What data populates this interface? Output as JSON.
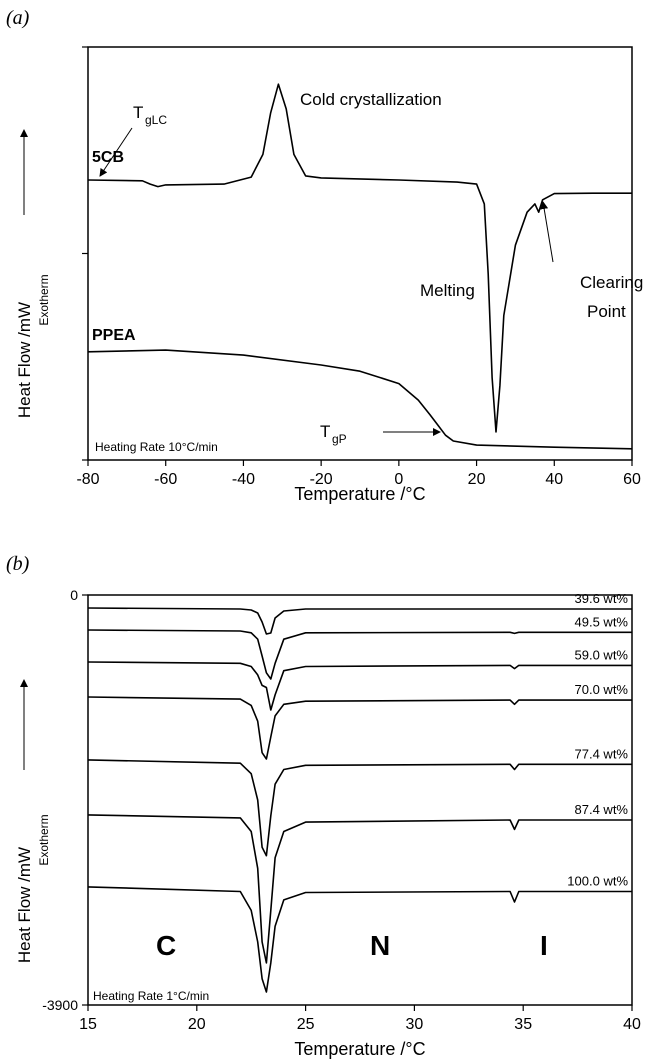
{
  "chart_data": [
    {
      "type": "line",
      "panel_label": "(a)",
      "xlabel": "Temperature /°C",
      "ylabel": "Heat Flow /mW",
      "ylabel_note": "Exotherm",
      "xlim": [
        -80,
        60
      ],
      "xticks": [
        -80,
        -60,
        -40,
        -20,
        0,
        20,
        40,
        60
      ],
      "ylim": [
        0,
        100
      ],
      "yticks": [
        0,
        50,
        100
      ],
      "ytick_labels": false,
      "series": [
        {
          "name": "5CB",
          "color": "#000000",
          "x": [
            -80,
            -66,
            -64,
            -62,
            -60,
            -45,
            -38,
            -35,
            -33,
            -31,
            -29,
            -27,
            -24,
            -20,
            0,
            15,
            20,
            22,
            23,
            24,
            25,
            26,
            27,
            30,
            33,
            35,
            36,
            37,
            40,
            50,
            60
          ],
          "values": [
            67.8,
            67.6,
            66.8,
            66.2,
            66.6,
            66.8,
            68.5,
            74,
            84,
            91,
            85,
            74,
            68.8,
            68.3,
            67.8,
            67.3,
            66.8,
            62,
            45,
            20,
            6.8,
            18,
            35,
            52,
            60,
            62,
            60,
            63,
            64.5,
            64.6,
            64.6
          ]
        },
        {
          "name": "PPEA",
          "color": "#000000",
          "x": [
            -80,
            -60,
            -40,
            -20,
            -10,
            0,
            5,
            8,
            10,
            12,
            14,
            20,
            40,
            60
          ],
          "values": [
            26.2,
            26.6,
            25.4,
            23,
            21.5,
            18.5,
            14.5,
            11,
            8.5,
            6,
            4.6,
            3.6,
            3.1,
            2.7
          ]
        }
      ],
      "annotations": {
        "cold": "Cold crystallization",
        "tglc_main": "T",
        "tglc_sub": "gLC",
        "melting": "Melting",
        "clearing1": "Clearing",
        "clearing2": "Point",
        "tgp_main": "T",
        "tgp_sub": "gP",
        "rate": "Heating Rate 10°C/min"
      }
    },
    {
      "type": "line",
      "panel_label": "(b)",
      "xlabel": "Temperature /°C",
      "ylabel": "Heat Flow /mW",
      "ylabel_note": "Exotherm",
      "xlim": [
        15,
        40
      ],
      "xticks": [
        15,
        20,
        25,
        30,
        35,
        40
      ],
      "ylim": [
        -3900,
        0
      ],
      "yticks": [
        -3900,
        0
      ],
      "ytick_labels": true,
      "x": [
        15,
        22,
        22.5,
        22.8,
        23.0,
        23.2,
        23.4,
        23.6,
        24,
        25,
        34.4,
        34.6,
        34.8,
        40
      ],
      "series": [
        {
          "name": "39.6 wt%",
          "color": "#000000",
          "values": [
            -124,
            -133,
            -143,
            -171,
            -257,
            -371,
            -361,
            -219,
            -152,
            -133,
            -133,
            -133,
            -133,
            -133
          ]
        },
        {
          "name": "49.5 wt%",
          "color": "#000000",
          "values": [
            -333,
            -342,
            -360,
            -420,
            -580,
            -740,
            -799,
            -650,
            -420,
            -360,
            -355,
            -365,
            -355,
            -355
          ]
        },
        {
          "name": "59.0 wt%",
          "color": "#000000",
          "values": [
            -637,
            -650,
            -680,
            -760,
            -860,
            -880,
            -1094,
            -950,
            -720,
            -680,
            -670,
            -700,
            -670,
            -670
          ]
        },
        {
          "name": "70.0 wt%",
          "color": "#000000",
          "values": [
            -970,
            -990,
            -1050,
            -1200,
            -1500,
            -1560,
            -1350,
            -1150,
            -1040,
            -1010,
            -1000,
            -1040,
            -1000,
            -1000
          ]
        },
        {
          "name": "77.4 wt%",
          "color": "#000000",
          "values": [
            -1569,
            -1600,
            -1700,
            -1950,
            -2400,
            -2480,
            -2100,
            -1800,
            -1660,
            -1620,
            -1610,
            -1660,
            -1610,
            -1610
          ]
        },
        {
          "name": "87.4 wt%",
          "color": "#000000",
          "values": [
            -2092,
            -2120,
            -2250,
            -2600,
            -3300,
            -3500,
            -3000,
            -2500,
            -2250,
            -2160,
            -2140,
            -2230,
            -2140,
            -2140
          ]
        },
        {
          "name": "100.0 wt%",
          "color": "#000000",
          "values": [
            -2777,
            -2820,
            -3000,
            -3300,
            -3650,
            -3776,
            -3500,
            -3150,
            -2900,
            -2830,
            -2820,
            -2920,
            -2820,
            -2820
          ]
        }
      ],
      "annotations": {
        "rate": "Heating Rate 1°C/min",
        "phase_c": "C",
        "phase_n": "N",
        "phase_i": "I"
      }
    }
  ]
}
